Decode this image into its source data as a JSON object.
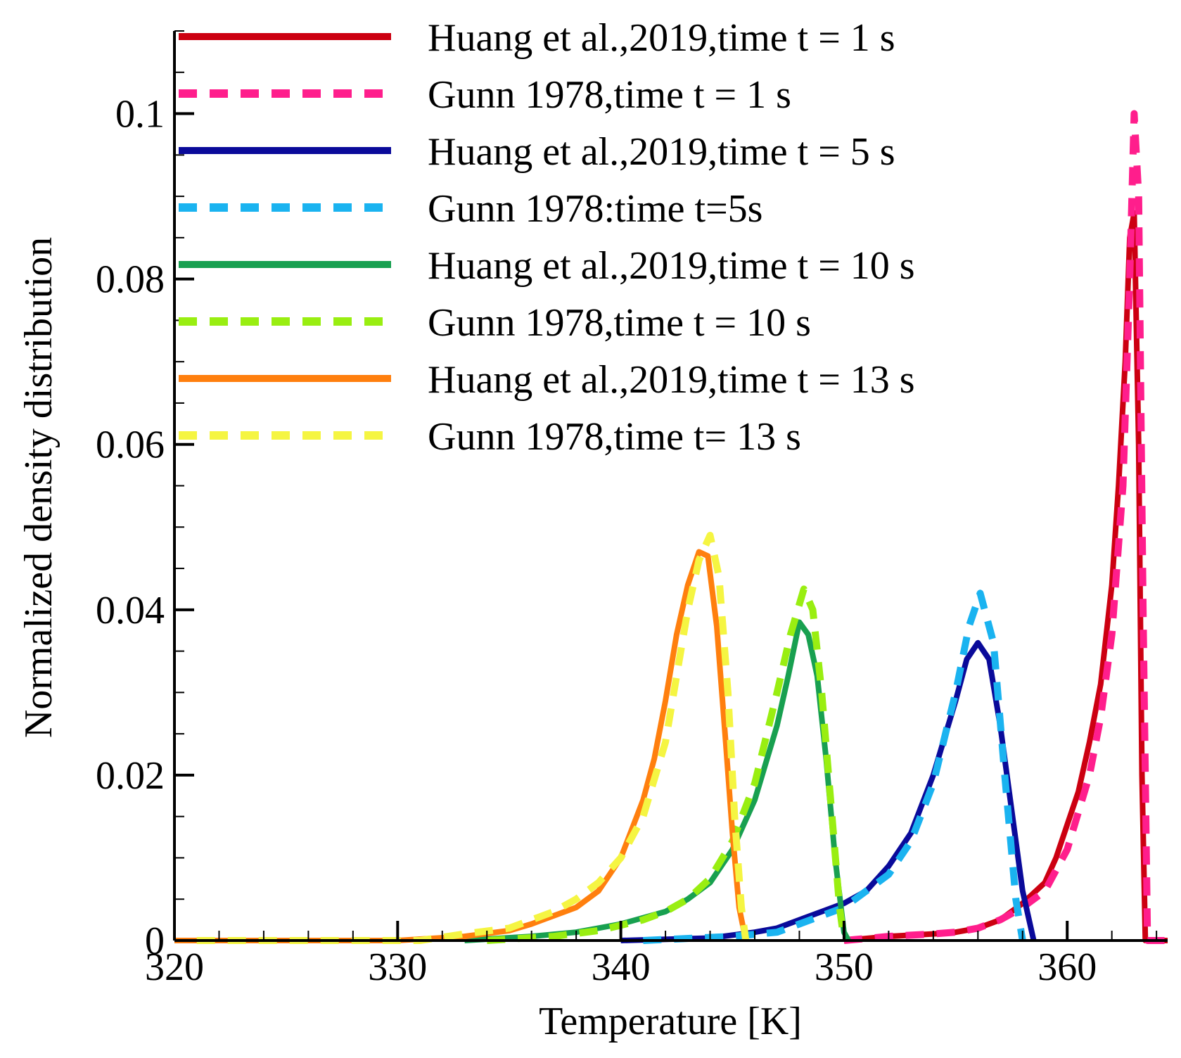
{
  "chart_data": {
    "type": "line",
    "title": "",
    "xlabel": "Temperature [K]",
    "ylabel": "Normalized density distribution",
    "xlim": [
      320,
      364.5
    ],
    "ylim": [
      0,
      0.11
    ],
    "xticks": [
      320,
      330,
      340,
      350,
      360
    ],
    "xtick_labels": [
      "320",
      "330",
      "340",
      "350",
      "360"
    ],
    "yticks": [
      0,
      0.02,
      0.04,
      0.06,
      0.08,
      0.1
    ],
    "ytick_labels": [
      "0",
      "0.02",
      "0.04",
      "0.06",
      "0.08",
      "0.1"
    ],
    "grid": false,
    "legend_position": "top-left",
    "series": [
      {
        "name": "Huang et al.,2019,time t = 1 s",
        "color": "#cc0011",
        "style": "solid",
        "x": [
          350,
          352,
          354,
          355,
          356,
          357,
          358,
          359,
          359.5,
          360,
          360.5,
          361,
          361.5,
          362,
          362.3,
          362.6,
          362.8,
          363,
          363.2,
          363.35,
          363.5,
          364.5
        ],
        "y": [
          0,
          0.0005,
          0.0008,
          0.001,
          0.0015,
          0.0025,
          0.0045,
          0.007,
          0.01,
          0.014,
          0.018,
          0.024,
          0.031,
          0.043,
          0.055,
          0.07,
          0.085,
          0.088,
          0.06,
          0.02,
          0,
          0
        ]
      },
      {
        "name": "Gunn 1978,time t = 1 s",
        "color": "#ff1e8c",
        "style": "dashed",
        "x": [
          350,
          352,
          354,
          355,
          356,
          357,
          358,
          359,
          360,
          361,
          361.5,
          362,
          362.5,
          362.8,
          363,
          363.2,
          363.4,
          363.6,
          364.5
        ],
        "y": [
          0,
          0.0005,
          0.0008,
          0.001,
          0.0015,
          0.0025,
          0.004,
          0.006,
          0.011,
          0.02,
          0.027,
          0.037,
          0.055,
          0.08,
          0.1,
          0.09,
          0.04,
          0,
          0
        ]
      },
      {
        "name": "Huang et al.,2019,time t = 5 s",
        "color": "#0a0a9a",
        "style": "solid",
        "x": [
          340,
          344,
          346,
          347,
          348,
          349,
          350,
          351,
          352,
          353,
          354,
          355,
          355.5,
          356,
          356.5,
          357,
          357.5,
          358,
          358.5
        ],
        "y": [
          0,
          0.0003,
          0.001,
          0.0015,
          0.0025,
          0.0035,
          0.0045,
          0.006,
          0.009,
          0.013,
          0.02,
          0.029,
          0.034,
          0.036,
          0.034,
          0.026,
          0.016,
          0.006,
          0
        ]
      },
      {
        "name": "Gunn 1978:time t=5s",
        "color": "#1ab3f0",
        "style": "dashed",
        "x": [
          341,
          345,
          347,
          348,
          349,
          350,
          351,
          352,
          353,
          354,
          355,
          355.6,
          356.1,
          356.7,
          357.2,
          357.7,
          358
        ],
        "y": [
          0,
          0.0005,
          0.001,
          0.002,
          0.003,
          0.004,
          0.006,
          0.008,
          0.012,
          0.019,
          0.03,
          0.038,
          0.042,
          0.036,
          0.02,
          0.005,
          0
        ]
      },
      {
        "name": "Huang et al.,2019,time t = 10 s",
        "color": "#18a050",
        "style": "solid",
        "x": [
          333,
          336,
          338,
          340,
          342,
          343,
          344,
          345,
          346,
          347,
          347.5,
          348,
          348.4,
          348.8,
          349.2,
          349.6,
          350,
          350.2
        ],
        "y": [
          0,
          0.0005,
          0.001,
          0.002,
          0.0035,
          0.005,
          0.007,
          0.011,
          0.017,
          0.026,
          0.032,
          0.0385,
          0.037,
          0.032,
          0.022,
          0.01,
          0.001,
          0
        ]
      },
      {
        "name": "Gunn 1978,time t = 10 s",
        "color": "#99ee11",
        "style": "dashed",
        "x": [
          334,
          337,
          339,
          341,
          342,
          343,
          344,
          345,
          346,
          347,
          347.6,
          348.2,
          348.6,
          349,
          349.4,
          349.8,
          350
        ],
        "y": [
          0,
          0.0005,
          0.0012,
          0.0025,
          0.0035,
          0.005,
          0.0075,
          0.012,
          0.019,
          0.03,
          0.037,
          0.0425,
          0.04,
          0.03,
          0.017,
          0.004,
          0
        ]
      },
      {
        "name": "Huang et al.,2019,time t = 13 s",
        "color": "#ff7f0e",
        "style": "solid",
        "x": [
          320,
          330,
          333,
          335,
          336,
          337,
          338,
          339,
          340,
          341,
          341.5,
          342,
          342.5,
          343,
          343.5,
          343.9,
          344.3,
          344.7,
          345,
          345.3,
          345.6
        ],
        "y": [
          0,
          0,
          0.0005,
          0.0012,
          0.002,
          0.003,
          0.004,
          0.006,
          0.01,
          0.017,
          0.022,
          0.029,
          0.037,
          0.043,
          0.047,
          0.0465,
          0.038,
          0.024,
          0.013,
          0.004,
          0
        ]
      },
      {
        "name": "Gunn 1978,time t= 13 s",
        "color": "#f5f542",
        "style": "dashed",
        "x": [
          321,
          331,
          333,
          335,
          336,
          337,
          338,
          339,
          340,
          341,
          342,
          342.5,
          343,
          343.5,
          344,
          344.4,
          344.8,
          345.1,
          345.4,
          345.6
        ],
        "y": [
          0,
          0,
          0.0008,
          0.0015,
          0.0025,
          0.0035,
          0.005,
          0.007,
          0.01,
          0.015,
          0.024,
          0.032,
          0.04,
          0.046,
          0.049,
          0.044,
          0.03,
          0.015,
          0.004,
          0
        ]
      }
    ]
  }
}
